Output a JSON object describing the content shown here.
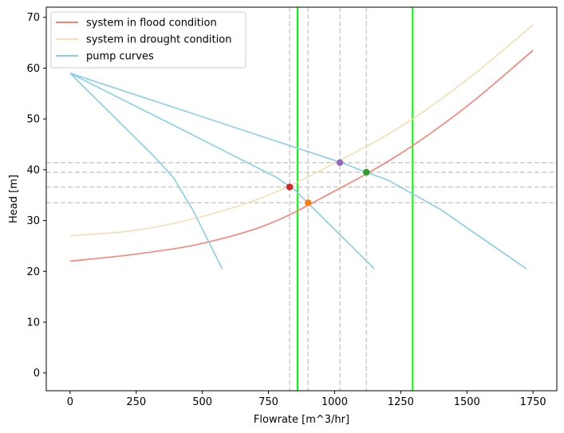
{
  "chart_data": {
    "type": "line",
    "xlabel": "Flowrate [m^3/hr]",
    "ylabel": "Head [m]",
    "xlim": [
      -90,
      1840
    ],
    "ylim": [
      -3.5,
      72
    ],
    "xticks": [
      0,
      250,
      500,
      750,
      1000,
      1250,
      1500,
      1750
    ],
    "yticks": [
      0,
      10,
      20,
      30,
      40,
      50,
      60,
      70
    ],
    "grid": false,
    "legend_position": "top-left",
    "series": [
      {
        "name": "system in flood condition",
        "color": "#fa8072",
        "x": [
          0,
          250,
          500,
          750,
          1000,
          1250,
          1500,
          1750
        ],
        "y": [
          22.0,
          23.4,
          25.5,
          29.3,
          35.8,
          43.2,
          52.5,
          63.5
        ]
      },
      {
        "name": "system in drought condition",
        "color": "#f5deb3",
        "x": [
          0,
          250,
          500,
          750,
          1000,
          1250,
          1500,
          1750
        ],
        "y": [
          27.0,
          28.1,
          30.8,
          35.0,
          41.3,
          48.5,
          57.7,
          68.5
        ]
      },
      {
        "name": "pump curves",
        "color": "#87ceeb",
        "x": [
          0,
          320,
          390,
          465,
          575
        ],
        "y": [
          59.0,
          42.5,
          38.5,
          32.0,
          20.5
        ]
      },
      {
        "name": "",
        "color": "#87ceeb",
        "x": [
          0,
          420,
          780,
          850,
          1150
        ],
        "y": [
          59.0,
          48.0,
          38.5,
          36.0,
          20.5
        ]
      },
      {
        "name": "",
        "color": "#87ceeb",
        "x": [
          0,
          1020,
          1120,
          1200,
          1400,
          1725
        ],
        "y": [
          59.0,
          41.5,
          39.5,
          38.0,
          32.2,
          20.5
        ]
      }
    ],
    "intersections": [
      {
        "x": 830,
        "y": 36.6,
        "color": "#d62728"
      },
      {
        "x": 900,
        "y": 33.5,
        "color": "#ff7f0e"
      },
      {
        "x": 1020,
        "y": 41.4,
        "color": "#9467bd"
      },
      {
        "x": 1120,
        "y": 39.5,
        "color": "#2ca02c"
      }
    ],
    "vlines_dashed": [
      830,
      900,
      1020,
      1120
    ],
    "hlines_dashed": [
      41.4,
      39.5,
      36.6,
      33.5
    ],
    "vlines_solid": [
      860,
      1295
    ],
    "dashed_color": "#cccccc",
    "solid_line_color": "#00ff00"
  }
}
